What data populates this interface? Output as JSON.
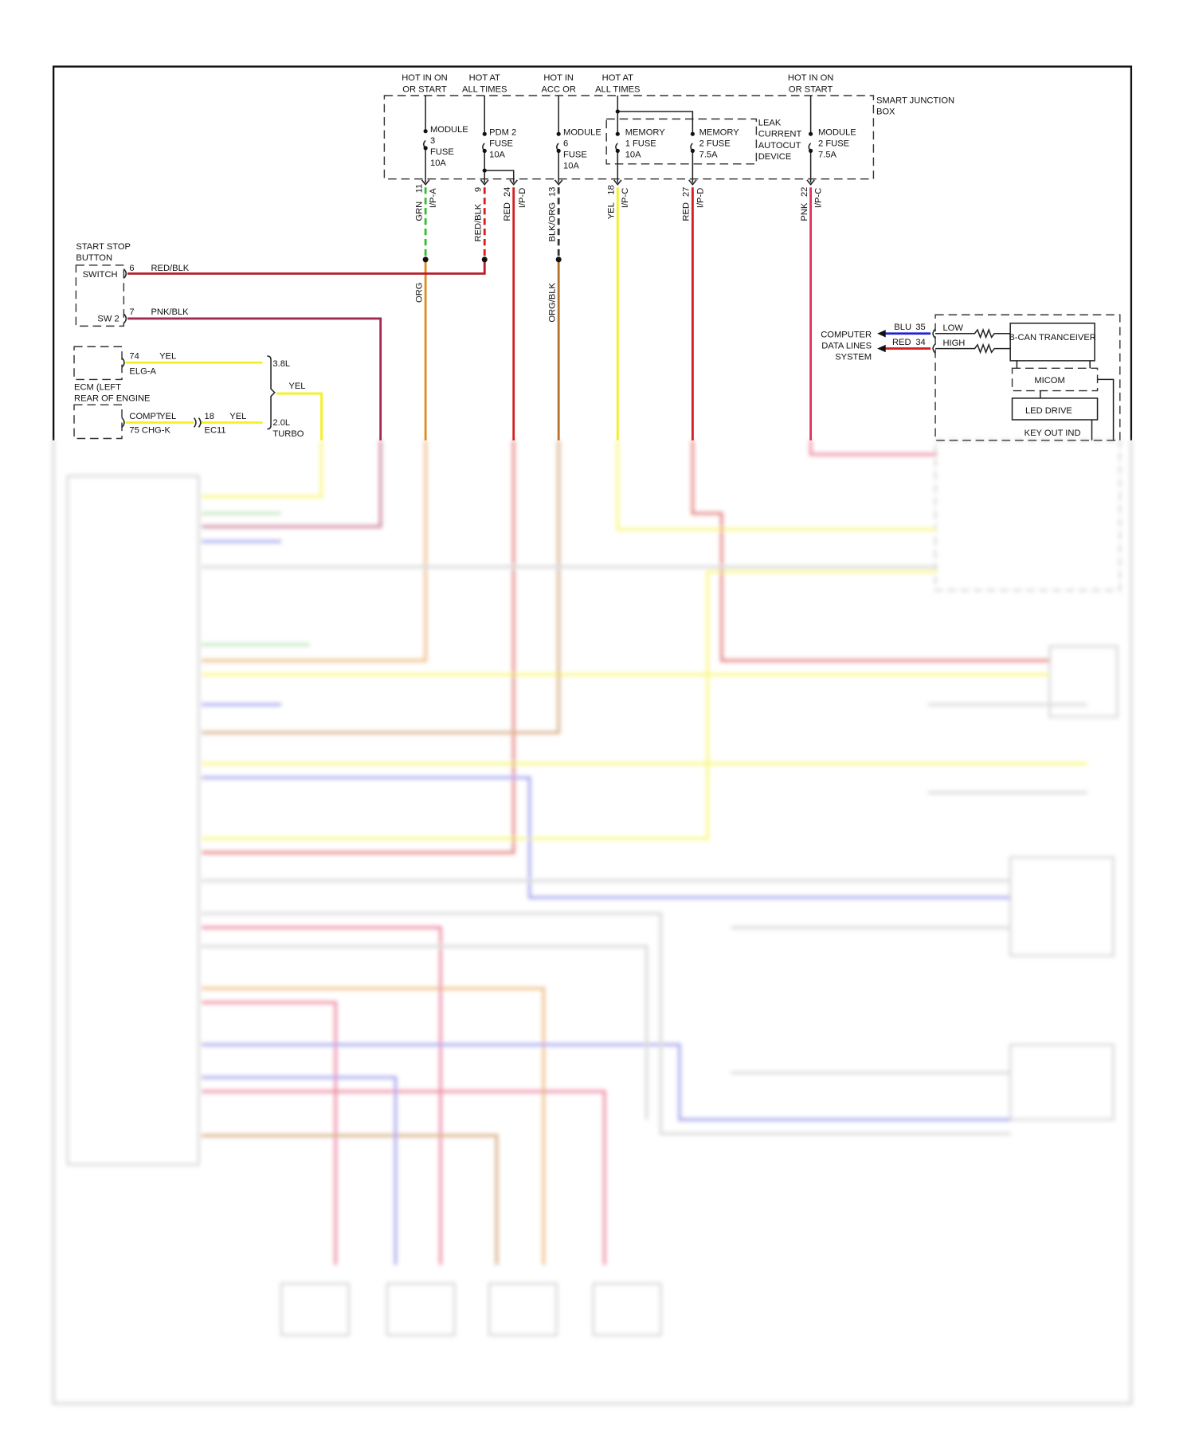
{
  "colors": {
    "red": "#d42020",
    "red_blk": "#b51e2a",
    "pnk_blk": "#a3284f",
    "pnk": "#e0305a",
    "grn": "#30c030",
    "yel": "#f5f020",
    "org": "#e08a20",
    "org_blk": "#b87028",
    "blk_org": "#333333",
    "blu": "#2020d0",
    "wire_gray": "#bbbbbb"
  },
  "power": [
    {
      "l1": "HOT IN ON",
      "l2": "OR START"
    },
    {
      "l1": "HOT AT",
      "l2": "ALL TIMES"
    },
    {
      "l1": "HOT IN",
      "l2": "ACC OR"
    },
    {
      "l1": "HOT AT",
      "l2": "ALL TIMES"
    },
    {
      "l1": "HOT IN ON",
      "l2": "OR START"
    }
  ],
  "junction_box": {
    "l1": "SMART JUNCTION",
    "l2": "BOX"
  },
  "leak": {
    "l1": "LEAK",
    "l2": "CURRENT",
    "l3": "AUTOCUT",
    "l4": "DEVICE"
  },
  "fuses": [
    {
      "l1": "MODULE",
      "l2": "3",
      "l3": "FUSE",
      "l4": "10A"
    },
    {
      "l1": "PDM 2",
      "l2": "FUSE",
      "l3": "10A"
    },
    {
      "l1": "MODULE",
      "l2": "6",
      "l3": "FUSE",
      "l4": "10A"
    },
    {
      "l1": "MEMORY",
      "l2": "1 FUSE",
      "l3": "10A"
    },
    {
      "l1": "MEMORY",
      "l2": "2 FUSE",
      "l3": "7.5A"
    },
    {
      "l1": "MODULE",
      "l2": "2 FUSE",
      "l3": "7.5A"
    }
  ],
  "pins": [
    {
      "color": "GRN",
      "pin": "11",
      "conn": "I/P-A"
    },
    {
      "color": "RED/BLK",
      "pin": "9",
      "conn": ""
    },
    {
      "color": "RED",
      "pin": "24",
      "conn": "I/P-D"
    },
    {
      "color": "BLK/ORG",
      "pin": "13",
      "conn": ""
    },
    {
      "color": "YEL",
      "pin": "18",
      "conn": "I/P-C"
    },
    {
      "color": "RED",
      "pin": "27",
      "conn": "I/P-D"
    },
    {
      "color": "PNK",
      "pin": "22",
      "conn": "I/P-C"
    }
  ],
  "wire_labels": {
    "org": "ORG",
    "org_blk": "ORG/BLK"
  },
  "start_stop": {
    "title1": "START STOP",
    "title2": "BUTTON",
    "switch": "SWITCH",
    "sw2": "SW 2",
    "pin6": "6",
    "pin6_color": "RED/BLK",
    "pin7": "7",
    "pin7_color": "PNK/BLK"
  },
  "ecm": {
    "pin74": "74",
    "pin74_color": "YEL",
    "conn_a": "ELG-A",
    "label1": "ECM (LEFT",
    "label2": "REAR OF ENGINE",
    "compt": "COMPT",
    "compt_color": "YEL",
    "pin75": "75 CHG-K",
    "pin18": "18",
    "pin18_color": "YEL",
    "ec11": "EC11",
    "v38": "3.8L",
    "yel": "YEL",
    "v20": "2.0L",
    "turbo": "TURBO"
  },
  "data_lines": {
    "l1": "COMPUTER",
    "l2": "DATA LINES",
    "l3": "SYSTEM",
    "blu": "BLU",
    "blu_pin": "35",
    "red": "RED",
    "red_pin": "34",
    "low": "LOW",
    "high": "HIGH"
  },
  "module": {
    "can": "B-CAN TRANCEIVER",
    "micom": "MICOM",
    "led": "LED DRIVE",
    "key_out": "KEY OUT IND"
  }
}
